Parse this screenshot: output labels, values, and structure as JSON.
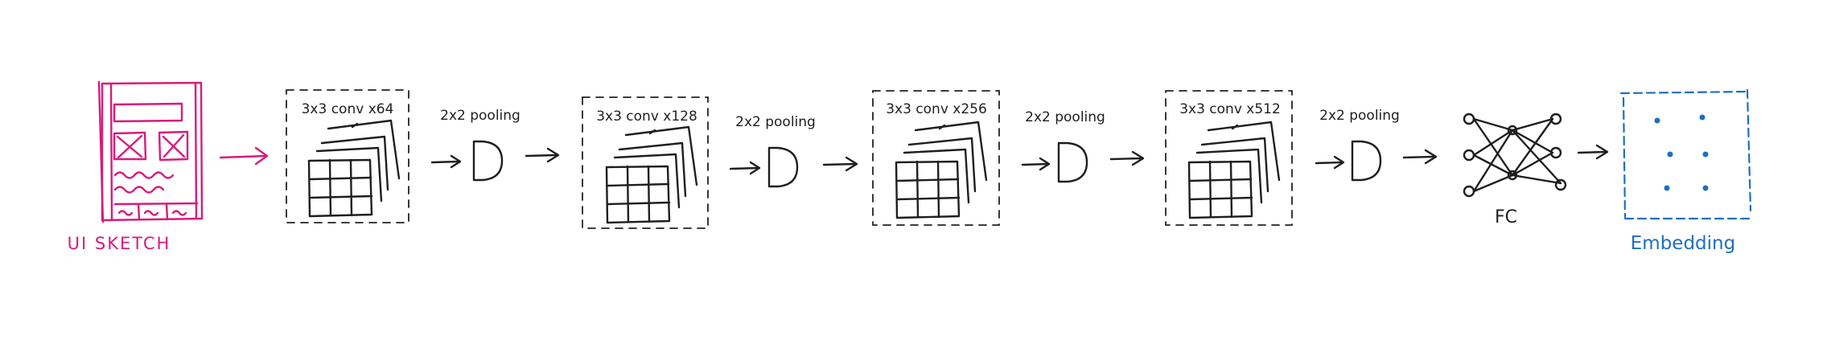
{
  "input": {
    "label": "UI SKETCH",
    "color": "#d81b7d"
  },
  "blocks": [
    {
      "conv_label": "3x3 conv x64",
      "pool_label": "2x2 pooling"
    },
    {
      "conv_label": "3x3 conv x128",
      "pool_label": "2x2 pooling"
    },
    {
      "conv_label": "3x3 conv x256",
      "pool_label": "2x2 pooling"
    },
    {
      "conv_label": "3x3 conv x512",
      "pool_label": "2x2 pooling"
    }
  ],
  "fc": {
    "label": "FC"
  },
  "output": {
    "label": "Embedding",
    "color": "#1f6fc0"
  },
  "ink_color": "#1f1f1f"
}
